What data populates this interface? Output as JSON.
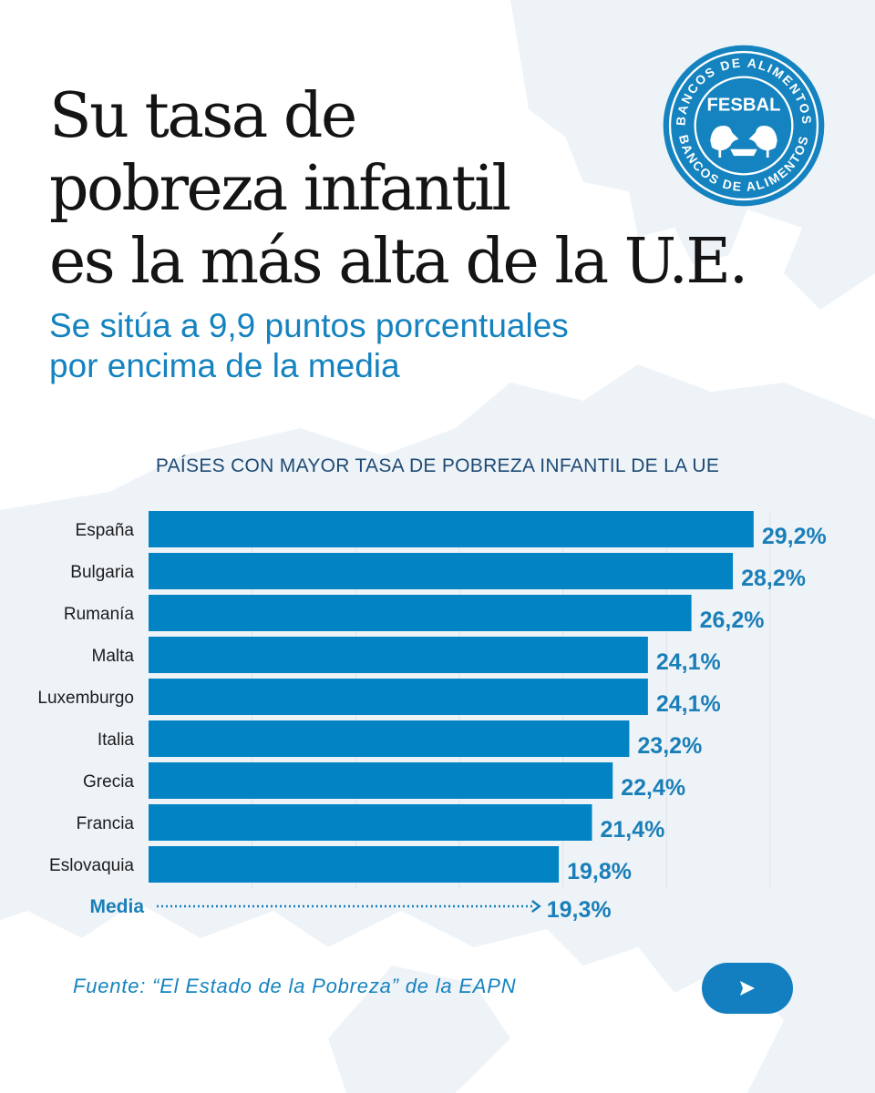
{
  "header": {
    "title_lines": [
      "Su tasa de",
      "pobreza infantil",
      "es la más alta de la U.E."
    ],
    "subtitle_lines": [
      "Se sitúa a 9,9 puntos porcentuales",
      "por encima de la media"
    ]
  },
  "logo": {
    "name": "FESBAL",
    "ring_text": "BANCOS DE ALIMENTOS",
    "color": "#1583bf"
  },
  "chart_data": {
    "type": "bar",
    "orientation": "horizontal",
    "title": "PAÍSES CON MAYOR TASA DE POBREZA INFANTIL DE LA UE",
    "categories": [
      "España",
      "Bulgaria",
      "Rumanía",
      "Malta",
      "Luxemburgo",
      "Italia",
      "Grecia",
      "Francia",
      "Eslovaquia"
    ],
    "values": [
      29.2,
      28.2,
      26.2,
      24.1,
      24.1,
      23.2,
      22.4,
      21.4,
      19.8
    ],
    "value_labels": [
      "29,2%",
      "28,2%",
      "26,2%",
      "24,1%",
      "24,1%",
      "23,2%",
      "22,4%",
      "21,4%",
      "19,8%"
    ],
    "bar_color": "#0283c3",
    "label_color": "#1a7fb8",
    "grid": true,
    "xlim": [
      0,
      30
    ],
    "reference": {
      "label": "Media",
      "value": 19.3,
      "value_label": "19,3%",
      "style": "dotted-arrow"
    }
  },
  "footer": {
    "source": "Fuente: “El Estado de la Pobreza” de la EAPN",
    "next_icon": "play-triangle-icon"
  }
}
